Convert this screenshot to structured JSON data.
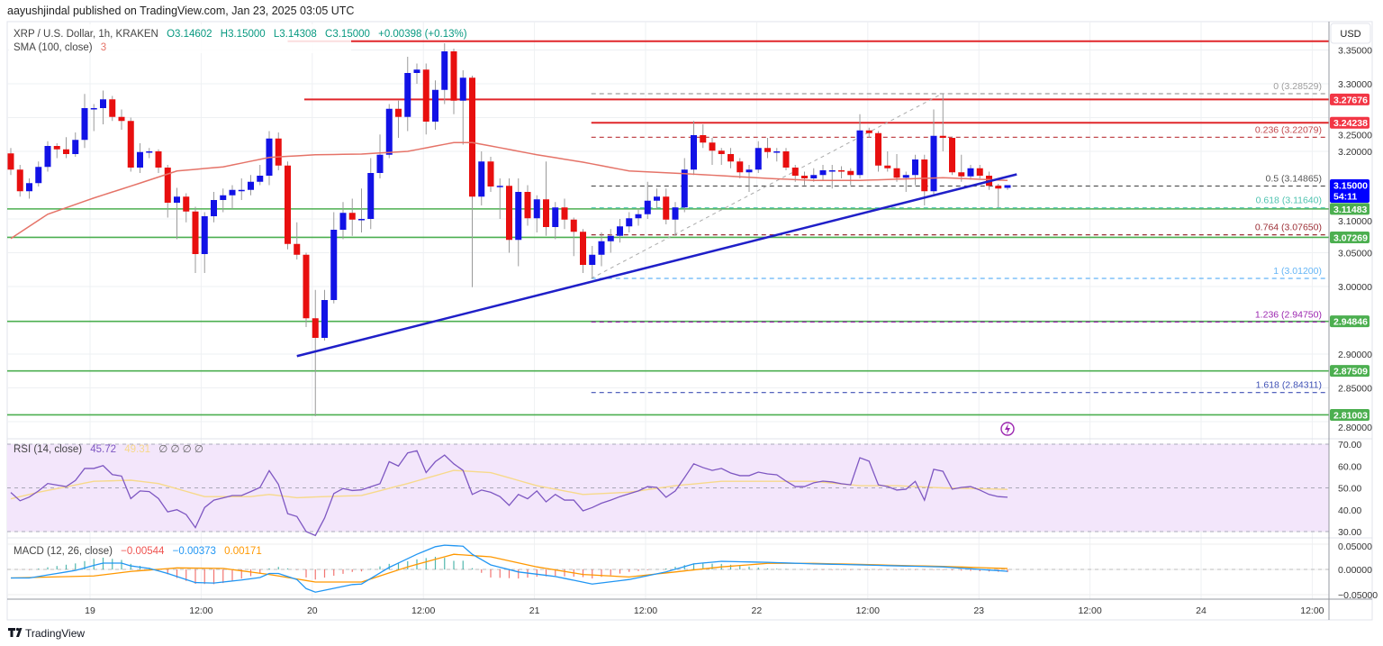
{
  "header": {
    "published": "aayushjindal published on TradingView.com, Jan 23, 2025 03:05 UTC"
  },
  "legend": {
    "symbol": "XRP / U.S. Dollar, 1h, KRAKEN",
    "open": "O3.14602",
    "high": "H3.15000",
    "low": "L3.14308",
    "close": "C3.15000",
    "change": "+0.00398 (+0.13%)",
    "sma_label": "SMA (100, close)",
    "sma_value": "3",
    "rsi_label": "RSI (14, close)",
    "rsi_value": "45.72",
    "rsi_ma_value": "49.31",
    "rsi_extra": "∅ ∅ ∅ ∅",
    "macd_label": "MACD (12, 26, close)",
    "macd_hist": "−0.00544",
    "macd_value": "−0.00373",
    "macd_signal": "0.00171"
  },
  "price_axis": {
    "currency": "USD",
    "ticks": [
      "3.35000",
      "3.30000",
      "3.25000",
      "3.20000",
      "3.10000",
      "3.05000",
      "3.00000",
      "2.90000",
      "2.85000",
      "2.80000"
    ],
    "badges": [
      {
        "value": "3.27676",
        "color": "#f23645"
      },
      {
        "value": "3.24238",
        "color": "#f23645"
      },
      {
        "value": "3.15000",
        "sub": "54:11",
        "color": "#0000ff"
      },
      {
        "value": "3.11483",
        "color": "#4caf50"
      },
      {
        "value": "3.07269",
        "color": "#4caf50"
      },
      {
        "value": "2.94846",
        "color": "#4caf50"
      },
      {
        "value": "2.87509",
        "color": "#4caf50"
      },
      {
        "value": "2.81003",
        "color": "#4caf50"
      }
    ]
  },
  "rsi_axis": {
    "ticks": [
      "70.00",
      "60.00",
      "50.00",
      "40.00",
      "30.00"
    ]
  },
  "macd_axis": {
    "ticks": [
      "0.05000",
      "0.00000",
      "−0.05000"
    ]
  },
  "time_axis": {
    "ticks": [
      "19",
      "12:00",
      "20",
      "12:00",
      "21",
      "12:00",
      "22",
      "12:00",
      "23",
      "12:00",
      "24",
      "12:00"
    ]
  },
  "branding": {
    "logo_text": "TradingView"
  },
  "colors": {
    "up": "#1212e6",
    "down": "#e80f0f",
    "sma": "#e57368",
    "trendline": "#1f1fc8",
    "rsi": "#7e57c2",
    "rsi_ma": "#f7d98b",
    "macd": "#2196f3",
    "signal": "#ff9800",
    "support": "#4caf50",
    "resistance": "#e0262a"
  },
  "chart_data": {
    "type": "candlestick",
    "interval": "1h",
    "ylim": [
      2.78,
      3.37
    ],
    "candles_ohlc": [
      [
        3.197,
        3.205,
        3.165,
        3.173
      ],
      [
        3.173,
        3.18,
        3.133,
        3.141
      ],
      [
        3.141,
        3.16,
        3.13,
        3.153
      ],
      [
        3.153,
        3.185,
        3.148,
        3.177
      ],
      [
        3.177,
        3.215,
        3.17,
        3.208
      ],
      [
        3.208,
        3.212,
        3.19,
        3.203
      ],
      [
        3.203,
        3.221,
        3.19,
        3.196
      ],
      [
        3.196,
        3.228,
        3.192,
        3.217
      ],
      [
        3.217,
        3.285,
        3.205,
        3.264
      ],
      [
        3.264,
        3.27,
        3.23,
        3.264
      ],
      [
        3.264,
        3.29,
        3.24,
        3.277
      ],
      [
        3.277,
        3.282,
        3.245,
        3.251
      ],
      [
        3.251,
        3.262,
        3.232,
        3.245
      ],
      [
        3.245,
        3.25,
        3.17,
        3.176
      ],
      [
        3.176,
        3.212,
        3.168,
        3.199
      ],
      [
        3.199,
        3.205,
        3.19,
        3.2
      ],
      [
        3.2,
        3.203,
        3.168,
        3.176
      ],
      [
        3.176,
        3.18,
        3.102,
        3.124
      ],
      [
        3.124,
        3.146,
        3.07,
        3.133
      ],
      [
        3.133,
        3.138,
        3.095,
        3.111
      ],
      [
        3.111,
        3.118,
        3.02,
        3.048
      ],
      [
        3.048,
        3.11,
        3.02,
        3.104
      ],
      [
        3.104,
        3.14,
        3.095,
        3.128
      ],
      [
        3.128,
        3.145,
        3.11,
        3.135
      ],
      [
        3.135,
        3.15,
        3.115,
        3.143
      ],
      [
        3.143,
        3.16,
        3.128,
        3.143
      ],
      [
        3.143,
        3.165,
        3.135,
        3.155
      ],
      [
        3.155,
        3.18,
        3.15,
        3.164
      ],
      [
        3.164,
        3.23,
        3.15,
        3.219
      ],
      [
        3.219,
        3.228,
        3.172,
        3.179
      ],
      [
        3.179,
        3.185,
        3.055,
        3.063
      ],
      [
        3.063,
        3.095,
        3.04,
        3.047
      ],
      [
        3.047,
        3.05,
        2.94,
        2.953
      ],
      [
        2.953,
        2.995,
        2.808,
        2.924
      ],
      [
        2.924,
        2.995,
        2.92,
        2.98
      ],
      [
        2.98,
        3.11,
        2.975,
        3.084
      ],
      [
        3.084,
        3.125,
        3.07,
        3.109
      ],
      [
        3.109,
        3.13,
        3.075,
        3.099
      ],
      [
        3.099,
        3.145,
        3.08,
        3.1
      ],
      [
        3.1,
        3.19,
        3.085,
        3.168
      ],
      [
        3.168,
        3.225,
        3.16,
        3.195
      ],
      [
        3.195,
        3.27,
        3.19,
        3.263
      ],
      [
        3.263,
        3.275,
        3.22,
        3.251
      ],
      [
        3.251,
        3.34,
        3.23,
        3.316
      ],
      [
        3.316,
        3.33,
        3.3,
        3.321
      ],
      [
        3.321,
        3.33,
        3.225,
        3.244
      ],
      [
        3.244,
        3.305,
        3.232,
        3.291
      ],
      [
        3.291,
        3.36,
        3.27,
        3.348
      ],
      [
        3.348,
        3.352,
        3.255,
        3.275
      ],
      [
        3.275,
        3.32,
        3.21,
        3.309
      ],
      [
        3.309,
        3.312,
        2.999,
        3.133
      ],
      [
        3.133,
        3.2,
        3.12,
        3.185
      ],
      [
        3.185,
        3.192,
        3.14,
        3.148
      ],
      [
        3.148,
        3.16,
        3.1,
        3.149
      ],
      [
        3.149,
        3.16,
        3.05,
        3.069
      ],
      [
        3.069,
        3.16,
        3.03,
        3.14
      ],
      [
        3.14,
        3.15,
        3.09,
        3.101
      ],
      [
        3.101,
        3.135,
        3.08,
        3.129
      ],
      [
        3.129,
        3.185,
        3.075,
        3.088
      ],
      [
        3.088,
        3.125,
        3.07,
        3.117
      ],
      [
        3.117,
        3.13,
        3.085,
        3.099
      ],
      [
        3.099,
        3.102,
        3.045,
        3.081
      ],
      [
        3.081,
        3.085,
        3.02,
        3.032
      ],
      [
        3.032,
        3.06,
        3.012,
        3.047
      ],
      [
        3.047,
        3.08,
        3.03,
        3.067
      ],
      [
        3.067,
        3.085,
        3.05,
        3.075
      ],
      [
        3.075,
        3.1,
        3.065,
        3.089
      ],
      [
        3.089,
        3.11,
        3.08,
        3.101
      ],
      [
        3.101,
        3.115,
        3.09,
        3.107
      ],
      [
        3.107,
        3.155,
        3.1,
        3.127
      ],
      [
        3.127,
        3.145,
        3.115,
        3.133
      ],
      [
        3.133,
        3.145,
        3.092,
        3.099
      ],
      [
        3.099,
        3.125,
        3.075,
        3.117
      ],
      [
        3.117,
        3.19,
        3.11,
        3.173
      ],
      [
        3.173,
        3.245,
        3.165,
        3.224
      ],
      [
        3.224,
        3.24,
        3.205,
        3.213
      ],
      [
        3.213,
        3.22,
        3.18,
        3.201
      ],
      [
        3.201,
        3.205,
        3.18,
        3.196
      ],
      [
        3.196,
        3.205,
        3.175,
        3.185
      ],
      [
        3.185,
        3.19,
        3.16,
        3.169
      ],
      [
        3.169,
        3.18,
        3.14,
        3.173
      ],
      [
        3.173,
        3.215,
        3.168,
        3.205
      ],
      [
        3.205,
        3.22,
        3.19,
        3.199
      ],
      [
        3.199,
        3.205,
        3.185,
        3.2
      ],
      [
        3.2,
        3.205,
        3.172,
        3.176
      ],
      [
        3.176,
        3.18,
        3.155,
        3.164
      ],
      [
        3.164,
        3.17,
        3.15,
        3.16
      ],
      [
        3.16,
        3.175,
        3.155,
        3.165
      ],
      [
        3.165,
        3.18,
        3.158,
        3.172
      ],
      [
        3.172,
        3.18,
        3.145,
        3.172
      ],
      [
        3.172,
        3.178,
        3.16,
        3.171
      ],
      [
        3.171,
        3.175,
        3.15,
        3.165
      ],
      [
        3.165,
        3.255,
        3.16,
        3.231
      ],
      [
        3.231,
        3.235,
        3.22,
        3.227
      ],
      [
        3.227,
        3.23,
        3.17,
        3.179
      ],
      [
        3.179,
        3.2,
        3.17,
        3.175
      ],
      [
        3.175,
        3.196,
        3.155,
        3.161
      ],
      [
        3.161,
        3.17,
        3.14,
        3.165
      ],
      [
        3.165,
        3.195,
        3.15,
        3.188
      ],
      [
        3.188,
        3.195,
        3.12,
        3.141
      ],
      [
        3.141,
        3.262,
        3.135,
        3.223
      ],
      [
        3.223,
        3.285,
        3.2,
        3.22
      ],
      [
        3.22,
        3.222,
        3.165,
        3.169
      ],
      [
        3.169,
        3.195,
        3.155,
        3.163
      ],
      [
        3.163,
        3.18,
        3.158,
        3.175
      ],
      [
        3.175,
        3.18,
        3.16,
        3.164
      ],
      [
        3.164,
        3.17,
        3.143,
        3.149
      ],
      [
        3.149,
        3.152,
        3.117,
        3.145
      ],
      [
        3.14602,
        3.15,
        3.14308,
        3.15
      ]
    ],
    "sma_100": [
      [
        0,
        3.071
      ],
      [
        4,
        3.107
      ],
      [
        9,
        3.131
      ],
      [
        14,
        3.153
      ],
      [
        18,
        3.171
      ],
      [
        23,
        3.177
      ],
      [
        28,
        3.191
      ],
      [
        33,
        3.195
      ],
      [
        38,
        3.196
      ],
      [
        43,
        3.2
      ],
      [
        48,
        3.213
      ],
      [
        50,
        3.213
      ],
      [
        52,
        3.208
      ],
      [
        57,
        3.195
      ],
      [
        62,
        3.184
      ],
      [
        67,
        3.171
      ],
      [
        73,
        3.167
      ],
      [
        77,
        3.164
      ],
      [
        82,
        3.16
      ],
      [
        87,
        3.157
      ],
      [
        92,
        3.157
      ],
      [
        101,
        3.161
      ],
      [
        108,
        3.157
      ]
    ],
    "resistance_levels": [
      3.363,
      3.27676,
      3.24238
    ],
    "support_levels": [
      3.11483,
      3.07269,
      2.94846,
      2.87509,
      2.81003
    ],
    "trendline": {
      "start": [
        31,
        2.897
      ],
      "end": [
        109,
        3.166
      ]
    },
    "fibonacci": [
      {
        "label": "0 (3.28529)",
        "level": 3.28529,
        "color": "#9e9e9e"
      },
      {
        "label": "0.236 (3.22079)",
        "level": 3.22079,
        "color": "#c2484d"
      },
      {
        "label": "0.5 (3.14865)",
        "level": 3.14865,
        "color": "#555555"
      },
      {
        "label": "0.618 (3.11640)",
        "level": 3.1164,
        "color": "#4fc3b0"
      },
      {
        "label": "0.764 (3.07650)",
        "level": 3.0765,
        "color": "#9c2f36"
      },
      {
        "label": "1 (3.01200)",
        "level": 3.012,
        "color": "#64b5f6"
      },
      {
        "label": "1.236 (2.94750)",
        "level": 2.9475,
        "color": "#9c27b0"
      },
      {
        "label": "1.618 (2.84311)",
        "level": 2.84311,
        "color": "#3f51b5"
      }
    ],
    "rsi": [
      47.9,
      44.1,
      45.8,
      48.6,
      52.0,
      51.3,
      50.6,
      53.4,
      58.9,
      58.9,
      60.2,
      56.1,
      55.4,
      45.1,
      48.6,
      48.3,
      45.1,
      39.0,
      40.0,
      37.8,
      31.8,
      41.0,
      44.4,
      45.4,
      46.5,
      46.5,
      48.3,
      50.2,
      57.9,
      51.6,
      38.2,
      36.9,
      30.0,
      28.2,
      36.2,
      47.4,
      49.7,
      48.8,
      49.1,
      50.5,
      51.9,
      62,
      60,
      66,
      67,
      57,
      62,
      65,
      61,
      58,
      47,
      49,
      48,
      46,
      42,
      47,
      45,
      48.6,
      43.6,
      47,
      44.4,
      44.4,
      39.5,
      41,
      43,
      44.4,
      46,
      47.3,
      48.6,
      50.6,
      50.2,
      45.7,
      48.6,
      54.7,
      61,
      59.3,
      58,
      58.9,
      56.8,
      55.6,
      55.6,
      57.2,
      56.4,
      56,
      53.1,
      50.6,
      50.6,
      52.3,
      53.1,
      52.7,
      51.9,
      51.4,
      63.8,
      62.2,
      51.4,
      50.6,
      49,
      49.4,
      53,
      44.4,
      58.5,
      57.6,
      49.4,
      50.2,
      50.6,
      49,
      47,
      46,
      45.72
    ],
    "rsi_ma": [
      [
        0,
        45
      ],
      [
        3,
        48
      ],
      [
        9,
        53
      ],
      [
        13,
        53.5
      ],
      [
        16,
        52
      ],
      [
        21,
        46
      ],
      [
        26,
        46
      ],
      [
        28,
        47
      ],
      [
        31,
        45.5
      ],
      [
        34,
        46
      ],
      [
        38,
        46.5
      ],
      [
        43,
        52
      ],
      [
        48,
        58
      ],
      [
        52,
        57
      ],
      [
        57,
        51
      ],
      [
        62,
        47
      ],
      [
        67,
        48
      ],
      [
        72,
        51
      ],
      [
        77,
        53
      ],
      [
        82,
        53
      ],
      [
        87,
        53
      ],
      [
        92,
        51
      ],
      [
        96,
        51
      ],
      [
        101,
        50
      ],
      [
        108,
        49.31
      ]
    ],
    "rsi_bands": [
      30,
      50,
      70
    ],
    "macd": [
      [
        0,
        -0.017
      ],
      [
        2,
        -0.017
      ],
      [
        4,
        -0.011
      ],
      [
        7,
        -0.002
      ],
      [
        9,
        0.008
      ],
      [
        10,
        0.0125
      ],
      [
        12,
        0.0125
      ],
      [
        13,
        0.007
      ],
      [
        15,
        0.002
      ],
      [
        17,
        -0.008
      ],
      [
        20,
        -0.026
      ],
      [
        22,
        -0.027
      ],
      [
        25,
        -0.021
      ],
      [
        27,
        -0.016
      ],
      [
        28,
        -0.008
      ],
      [
        29,
        -0.008
      ],
      [
        31,
        -0.02
      ],
      [
        32,
        -0.038
      ],
      [
        33,
        -0.045
      ],
      [
        37,
        -0.03
      ],
      [
        38,
        -0.029
      ],
      [
        41,
        0.004
      ],
      [
        44,
        0.03
      ],
      [
        46,
        0.045
      ],
      [
        47,
        0.048
      ],
      [
        49,
        0.046
      ],
      [
        50,
        0.03
      ],
      [
        52,
        0.009
      ],
      [
        55,
        -0.005
      ],
      [
        59,
        -0.014
      ],
      [
        63,
        -0.029
      ],
      [
        67,
        -0.02
      ],
      [
        71,
        -0.005
      ],
      [
        74,
        0.011
      ],
      [
        77,
        0.016
      ],
      [
        82,
        0.014
      ],
      [
        87,
        0.011
      ],
      [
        92,
        0.009
      ],
      [
        96,
        0.007
      ],
      [
        101,
        0.005
      ],
      [
        108,
        -0.00373
      ]
    ],
    "macd_signal": [
      [
        0,
        -0.017
      ],
      [
        9,
        -0.013
      ],
      [
        13,
        -0.004
      ],
      [
        18,
        0.003
      ],
      [
        23,
        0.002
      ],
      [
        28,
        -0.01
      ],
      [
        33,
        -0.025
      ],
      [
        38,
        -0.025
      ],
      [
        43,
        0.005
      ],
      [
        48,
        0.03
      ],
      [
        52,
        0.025
      ],
      [
        57,
        0.005
      ],
      [
        62,
        -0.01
      ],
      [
        67,
        -0.015
      ],
      [
        72,
        -0.005
      ],
      [
        77,
        0.005
      ],
      [
        82,
        0.012
      ],
      [
        87,
        0.012
      ],
      [
        92,
        0.01
      ],
      [
        96,
        0.008
      ],
      [
        101,
        0.006
      ],
      [
        108,
        0.00171
      ]
    ]
  }
}
